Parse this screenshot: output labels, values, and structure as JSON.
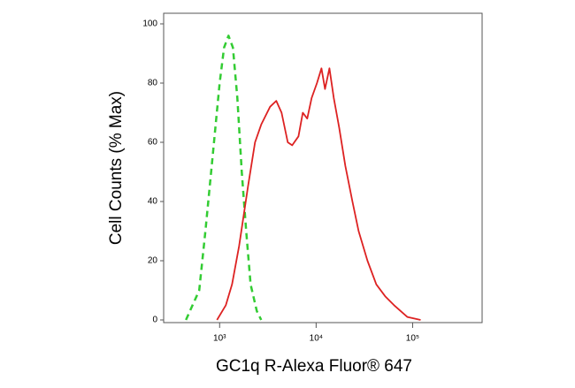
{
  "chart_data": {
    "type": "line",
    "xlabel": "GC1q R-Alexa Fluor® 647",
    "ylabel": "Cell Counts (% Max)",
    "xscale": "log",
    "xlim": [
      263,
      525000
    ],
    "xticks": [
      {
        "value": 1000,
        "label": "10³"
      },
      {
        "value": 10000,
        "label": "10⁴"
      },
      {
        "value": 100000,
        "label": "10⁵"
      }
    ],
    "ylim": [
      0,
      100
    ],
    "yticks": [
      0,
      20,
      40,
      60,
      80,
      100
    ],
    "series": [
      {
        "color": "#33cc33",
        "dash": true,
        "x": [
          448,
          615,
          713,
          845,
          1000,
          1111,
          1235,
          1372,
          1526,
          1695,
          1884,
          2093,
          2428,
          2697
        ],
        "values": [
          0,
          10,
          30,
          55,
          80,
          92,
          96,
          92,
          75,
          50,
          30,
          12,
          3,
          0
        ]
      },
      {
        "color": "#dd2222",
        "dash": false,
        "x": [
          939,
          1159,
          1344,
          1592,
          1966,
          2328,
          2697,
          3333,
          3864,
          4387,
          5082,
          5648,
          6559,
          7279,
          8091,
          8992,
          10210,
          11350,
          12360,
          13740,
          15250,
          17330,
          20090,
          23780,
          27560,
          34040,
          42030,
          51970,
          64140,
          88080,
          121000
        ],
        "values": [
          0,
          5,
          12,
          25,
          45,
          60,
          66,
          72,
          74,
          70,
          60,
          59,
          62,
          70,
          68,
          75,
          80,
          85,
          78,
          85,
          75,
          65,
          52,
          40,
          30,
          20,
          12,
          8,
          5,
          1,
          0
        ]
      }
    ]
  }
}
